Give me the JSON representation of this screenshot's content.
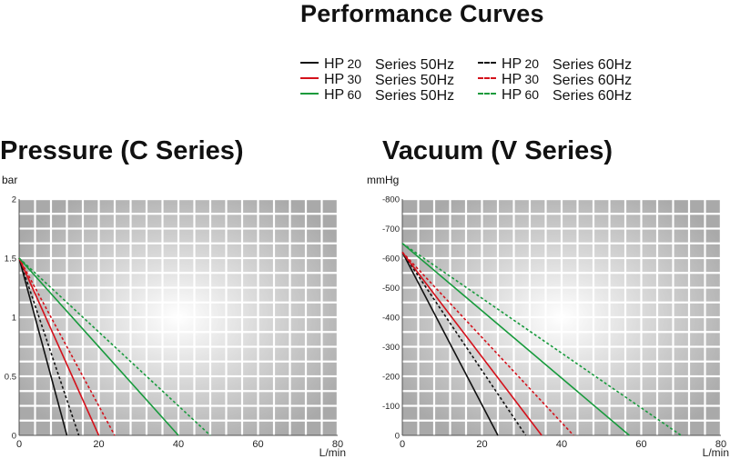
{
  "title": "Performance Curves",
  "legend": [
    {
      "hp": "HP",
      "num": "20",
      "series": "Series 50Hz",
      "color": "#111111",
      "dash": false
    },
    {
      "hp": "HP",
      "num": "30",
      "series": "Series 50Hz",
      "color": "#d4111b",
      "dash": false
    },
    {
      "hp": "HP",
      "num": "60",
      "series": "Series 50Hz",
      "color": "#179a3c",
      "dash": false
    },
    {
      "hp": "HP",
      "num": "20",
      "series": "Series 60Hz",
      "color": "#111111",
      "dash": true
    },
    {
      "hp": "HP",
      "num": "30",
      "series": "Series 60Hz",
      "color": "#d4111b",
      "dash": true
    },
    {
      "hp": "HP",
      "num": "60",
      "series": "Series 60Hz",
      "color": "#179a3c",
      "dash": true
    }
  ],
  "chart_data": [
    {
      "type": "line",
      "title": "Pressure (C Series)",
      "ylabel": "bar",
      "xlabel": "L/min",
      "xlim": [
        0,
        80
      ],
      "ylim": [
        0,
        2
      ],
      "xticks": [
        "0",
        "20",
        "40",
        "60",
        "80"
      ],
      "xtick_values": [
        0,
        20,
        40,
        60,
        80
      ],
      "yticks": [
        "0",
        "0.5",
        "1",
        "1.5",
        "2"
      ],
      "ytick_values": [
        0,
        0.5,
        1,
        1.5,
        2
      ],
      "grid": true,
      "series": [
        {
          "name": "HP 20 Series 50Hz",
          "color": "#111111",
          "dash": false,
          "points": [
            [
              0,
              1.5
            ],
            [
              12,
              0
            ]
          ]
        },
        {
          "name": "HP 20 Series 60Hz",
          "color": "#111111",
          "dash": true,
          "points": [
            [
              0,
              1.5
            ],
            [
              15,
              0
            ]
          ]
        },
        {
          "name": "HP 30 Series 50Hz",
          "color": "#d4111b",
          "dash": false,
          "points": [
            [
              0,
              1.5
            ],
            [
              20,
              0
            ]
          ]
        },
        {
          "name": "HP 30 Series 60Hz",
          "color": "#d4111b",
          "dash": true,
          "points": [
            [
              0,
              1.5
            ],
            [
              24,
              0
            ]
          ]
        },
        {
          "name": "HP 60 Series 50Hz",
          "color": "#179a3c",
          "dash": false,
          "points": [
            [
              0,
              1.5
            ],
            [
              40,
              0
            ]
          ]
        },
        {
          "name": "HP 60 Series 60Hz",
          "color": "#179a3c",
          "dash": true,
          "points": [
            [
              0,
              1.5
            ],
            [
              48,
              0
            ]
          ]
        }
      ]
    },
    {
      "type": "line",
      "title": "Vacuum (V Series)",
      "ylabel": "mmHg",
      "xlabel": "L/min",
      "xlim": [
        0,
        80
      ],
      "ylim": [
        0,
        -800
      ],
      "xticks": [
        "0",
        "20",
        "40",
        "60",
        "80"
      ],
      "xtick_values": [
        0,
        20,
        40,
        60,
        80
      ],
      "yticks": [
        "0",
        "-100",
        "-200",
        "-300",
        "-400",
        "-500",
        "-600",
        "-700",
        "-800"
      ],
      "ytick_values": [
        0,
        -100,
        -200,
        -300,
        -400,
        -500,
        -600,
        -700,
        -800
      ],
      "grid": true,
      "series": [
        {
          "name": "HP 20 Series 50Hz",
          "color": "#111111",
          "dash": false,
          "points": [
            [
              0,
              -620
            ],
            [
              24,
              0
            ]
          ]
        },
        {
          "name": "HP 20 Series 60Hz",
          "color": "#111111",
          "dash": true,
          "points": [
            [
              0,
              -620
            ],
            [
              31,
              0
            ]
          ]
        },
        {
          "name": "HP 30 Series 50Hz",
          "color": "#d4111b",
          "dash": false,
          "points": [
            [
              0,
              -620
            ],
            [
              35,
              0
            ]
          ]
        },
        {
          "name": "HP 30 Series 60Hz",
          "color": "#d4111b",
          "dash": true,
          "points": [
            [
              0,
              -620
            ],
            [
              43,
              0
            ]
          ]
        },
        {
          "name": "HP 60 Series 50Hz",
          "color": "#179a3c",
          "dash": false,
          "points": [
            [
              0,
              -650
            ],
            [
              57,
              0
            ]
          ]
        },
        {
          "name": "HP 60 Series 60Hz",
          "color": "#179a3c",
          "dash": true,
          "points": [
            [
              0,
              -650
            ],
            [
              70,
              0
            ]
          ]
        }
      ]
    }
  ]
}
